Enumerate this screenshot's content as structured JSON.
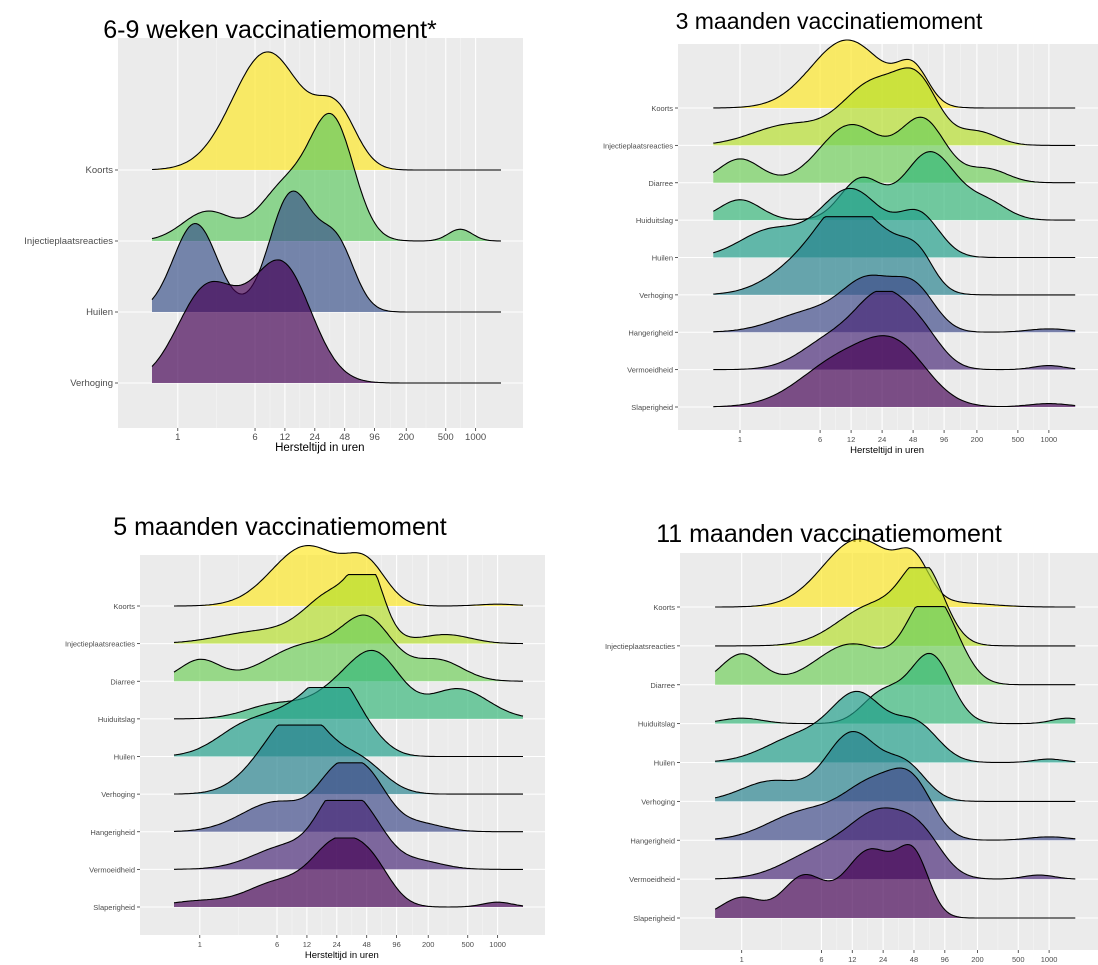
{
  "chart_data": [
    {
      "type": "ridgeline",
      "title": "6-9 weken vaccinatiemoment*",
      "xlabel": "Hersteltijd in uren",
      "ylabel": "",
      "x_scale": "log",
      "x_ticks": [
        1,
        6,
        12,
        24,
        48,
        96,
        200,
        500,
        1000
      ],
      "grid": true,
      "categories": [
        "Koorts",
        "Injectieplaatsreacties",
        "Huilen",
        "Verhoging"
      ],
      "series": [
        {
          "name": "Koorts",
          "color": "#fde725",
          "peaks": [
            [
              8,
              1.0,
              0.35
            ],
            [
              40,
              0.45,
              0.2
            ]
          ]
        },
        {
          "name": "Injectieplaatsreacties",
          "color": "#5ec962",
          "peaks": [
            [
              2,
              0.25,
              0.25
            ],
            [
              12,
              0.45,
              0.25
            ],
            [
              36,
              1.0,
              0.22
            ],
            [
              700,
              0.1,
              0.12
            ]
          ]
        },
        {
          "name": "Huilen",
          "color": "#3b528b",
          "peaks": [
            [
              1.5,
              0.75,
              0.22
            ],
            [
              14,
              1.0,
              0.22
            ],
            [
              40,
              0.55,
              0.18
            ]
          ]
        },
        {
          "name": "Verhoging",
          "color": "#440154",
          "peaks": [
            [
              2,
              0.8,
              0.3
            ],
            [
              11,
              1.0,
              0.3
            ]
          ]
        }
      ]
    },
    {
      "type": "ridgeline",
      "title": "3 maanden vaccinatiemoment",
      "xlabel": "Hersteltijd in uren",
      "ylabel": "",
      "x_scale": "log",
      "x_ticks": [
        1,
        6,
        12,
        24,
        48,
        96,
        200,
        500,
        1000
      ],
      "grid": true,
      "categories": [
        "Koorts",
        "Injectieplaatsreacties",
        "Diarree",
        "Huiduitslag",
        "Huilen",
        "Verhoging",
        "Hangerigheid",
        "Vermoeidheid",
        "Slaperigheid"
      ],
      "series": [
        {
          "name": "Koorts",
          "color": "#fde725",
          "peaks": [
            [
              11,
              1.0,
              0.35
            ],
            [
              48,
              0.5,
              0.15
            ]
          ]
        },
        {
          "name": "Injectieplaatsreacties",
          "color": "#b5de2b",
          "peaks": [
            [
              3,
              0.3,
              0.35
            ],
            [
              20,
              0.9,
              0.3
            ],
            [
              55,
              0.75,
              0.2
            ],
            [
              200,
              0.2,
              0.2
            ]
          ]
        },
        {
          "name": "Diarree",
          "color": "#6ece58",
          "peaks": [
            [
              1,
              0.35,
              0.2
            ],
            [
              12,
              0.85,
              0.3
            ],
            [
              60,
              0.9,
              0.22
            ],
            [
              250,
              0.2,
              0.2
            ]
          ]
        },
        {
          "name": "Huiduitslag",
          "color": "#35b779",
          "peaks": [
            [
              1,
              0.3,
              0.2
            ],
            [
              15,
              0.6,
              0.2
            ],
            [
              70,
              1.0,
              0.25
            ],
            [
              250,
              0.25,
              0.2
            ]
          ]
        },
        {
          "name": "Huilen",
          "color": "#1f9e89",
          "peaks": [
            [
              2,
              0.4,
              0.3
            ],
            [
              12,
              1.0,
              0.3
            ],
            [
              55,
              0.6,
              0.2
            ]
          ]
        },
        {
          "name": "Verhoging",
          "color": "#26828e",
          "peaks": [
            [
              5,
              0.55,
              0.35
            ],
            [
              11,
              0.9,
              0.25
            ],
            [
              30,
              0.6,
              0.25
            ],
            [
              55,
              0.35,
              0.15
            ]
          ]
        },
        {
          "name": "Hangerigheid",
          "color": "#3e4989",
          "peaks": [
            [
              5,
              0.3,
              0.35
            ],
            [
              18,
              0.7,
              0.25
            ],
            [
              50,
              0.6,
              0.2
            ],
            [
              1000,
              0.05,
              0.2
            ]
          ]
        },
        {
          "name": "Vermoeidheid",
          "color": "#482878",
          "peaks": [
            [
              8,
              0.45,
              0.3
            ],
            [
              25,
              1.0,
              0.25
            ],
            [
              60,
              0.4,
              0.2
            ],
            [
              1000,
              0.06,
              0.15
            ]
          ]
        },
        {
          "name": "Slaperigheid",
          "color": "#440154",
          "peaks": [
            [
              10,
              0.7,
              0.4
            ],
            [
              35,
              0.7,
              0.3
            ],
            [
              1000,
              0.05,
              0.2
            ]
          ]
        }
      ]
    },
    {
      "type": "ridgeline",
      "title": "5 maanden vaccinatiemoment",
      "xlabel": "Hersteltijd in uren",
      "ylabel": "",
      "x_scale": "log",
      "x_ticks": [
        1,
        6,
        12,
        24,
        48,
        96,
        200,
        500,
        1000
      ],
      "grid": true,
      "categories": [
        "Koorts",
        "Injectieplaatsreacties",
        "Diarree",
        "Huiduitslag",
        "Huilen",
        "Verhoging",
        "Hangerigheid",
        "Vermoeidheid",
        "Slaperigheid"
      ],
      "series": [
        {
          "name": "Koorts",
          "color": "#fde725",
          "peaks": [
            [
              12,
              1.0,
              0.35
            ],
            [
              48,
              0.6,
              0.2
            ],
            [
              1000,
              0.03,
              0.2
            ]
          ]
        },
        {
          "name": "Injectieplaatsreacties",
          "color": "#b5de2b",
          "peaks": [
            [
              4,
              0.2,
              0.4
            ],
            [
              24,
              0.85,
              0.3
            ],
            [
              50,
              0.9,
              0.15
            ],
            [
              300,
              0.15,
              0.25
            ]
          ]
        },
        {
          "name": "Diarree",
          "color": "#6ece58",
          "peaks": [
            [
              1,
              0.35,
              0.2
            ],
            [
              12,
              0.6,
              0.4
            ],
            [
              50,
              0.9,
              0.25
            ],
            [
              250,
              0.35,
              0.25
            ]
          ]
        },
        {
          "name": "Huiduitslag",
          "color": "#35b779",
          "peaks": [
            [
              6,
              0.25,
              0.3
            ],
            [
              24,
              0.4,
              0.25
            ],
            [
              60,
              1.0,
              0.25
            ],
            [
              400,
              0.5,
              0.3
            ]
          ]
        },
        {
          "name": "Huilen",
          "color": "#1f9e89",
          "peaks": [
            [
              3,
              0.5,
              0.3
            ],
            [
              12,
              0.8,
              0.3
            ],
            [
              24,
              0.8,
              0.2
            ],
            [
              48,
              0.3,
              0.2
            ]
          ]
        },
        {
          "name": "Verhoging",
          "color": "#26828e",
          "peaks": [
            [
              6,
              0.7,
              0.3
            ],
            [
              12,
              0.9,
              0.25
            ],
            [
              40,
              0.55,
              0.25
            ]
          ]
        },
        {
          "name": "Hangerigheid",
          "color": "#3e4989",
          "peaks": [
            [
              6,
              0.5,
              0.35
            ],
            [
              24,
              0.8,
              0.2
            ],
            [
              50,
              0.8,
              0.2
            ],
            [
              150,
              0.15,
              0.25
            ]
          ]
        },
        {
          "name": "Vermoeidheid",
          "color": "#482878",
          "peaks": [
            [
              8,
              0.4,
              0.35
            ],
            [
              24,
              1.0,
              0.2
            ],
            [
              50,
              0.7,
              0.2
            ],
            [
              150,
              0.15,
              0.25
            ]
          ]
        },
        {
          "name": "Slaperigheid",
          "color": "#440154",
          "peaks": [
            [
              1,
              0.1,
              0.3
            ],
            [
              6,
              0.4,
              0.3
            ],
            [
              24,
              1.0,
              0.25
            ],
            [
              55,
              0.55,
              0.2
            ],
            [
              1000,
              0.08,
              0.15
            ]
          ]
        }
      ]
    },
    {
      "type": "ridgeline",
      "title": "11 maanden vaccinatiemoment",
      "xlabel": "Hersteltijd in uren",
      "ylabel": "",
      "x_scale": "log",
      "x_ticks": [
        1,
        6,
        12,
        24,
        48,
        96,
        200,
        500,
        1000
      ],
      "grid": true,
      "categories": [
        "Koorts",
        "Injectieplaatsreacties",
        "Diarree",
        "Huiduitslag",
        "Huilen",
        "Verhoging",
        "Hangerigheid",
        "Vermoeidheid",
        "Slaperigheid"
      ],
      "series": [
        {
          "name": "Koorts",
          "color": "#fde725",
          "peaks": [
            [
              14,
              1.0,
              0.35
            ],
            [
              48,
              0.5,
              0.15
            ],
            [
              150,
              0.05,
              0.3
            ]
          ]
        },
        {
          "name": "Injectieplaatsreacties",
          "color": "#b5de2b",
          "peaks": [
            [
              20,
              0.6,
              0.35
            ],
            [
              60,
              1.0,
              0.2
            ]
          ]
        },
        {
          "name": "Diarree",
          "color": "#6ece58",
          "peaks": [
            [
              1,
              0.45,
              0.2
            ],
            [
              12,
              0.6,
              0.35
            ],
            [
              60,
              0.9,
              0.2
            ],
            [
              100,
              0.6,
              0.2
            ]
          ]
        },
        {
          "name": "Huiduitslag",
          "color": "#35b779",
          "peaks": [
            [
              1,
              0.08,
              0.2
            ],
            [
              24,
              0.45,
              0.2
            ],
            [
              70,
              1.0,
              0.2
            ],
            [
              1500,
              0.08,
              0.15
            ]
          ]
        },
        {
          "name": "Huilen",
          "color": "#1f9e89",
          "peaks": [
            [
              4,
              0.4,
              0.35
            ],
            [
              14,
              0.9,
              0.25
            ],
            [
              50,
              0.55,
              0.22
            ],
            [
              1000,
              0.05,
              0.15
            ]
          ]
        },
        {
          "name": "Verhoging",
          "color": "#26828e",
          "peaks": [
            [
              2,
              0.3,
              0.3
            ],
            [
              12,
              1.0,
              0.25
            ],
            [
              40,
              0.5,
              0.2
            ]
          ]
        },
        {
          "name": "Hangerigheid",
          "color": "#3e4989",
          "peaks": [
            [
              4,
              0.4,
              0.35
            ],
            [
              20,
              0.8,
              0.3
            ],
            [
              48,
              0.6,
              0.2
            ],
            [
              1000,
              0.05,
              0.2
            ]
          ]
        },
        {
          "name": "Vermoeidheid",
          "color": "#482878",
          "peaks": [
            [
              6,
              0.4,
              0.35
            ],
            [
              24,
              0.9,
              0.3
            ],
            [
              60,
              0.4,
              0.2
            ],
            [
              800,
              0.06,
              0.15
            ]
          ]
        },
        {
          "name": "Slaperigheid",
          "color": "#440154",
          "peaks": [
            [
              1,
              0.3,
              0.2
            ],
            [
              4,
              0.6,
              0.2
            ],
            [
              18,
              1.0,
              0.25
            ],
            [
              48,
              0.8,
              0.15
            ]
          ]
        }
      ]
    }
  ]
}
